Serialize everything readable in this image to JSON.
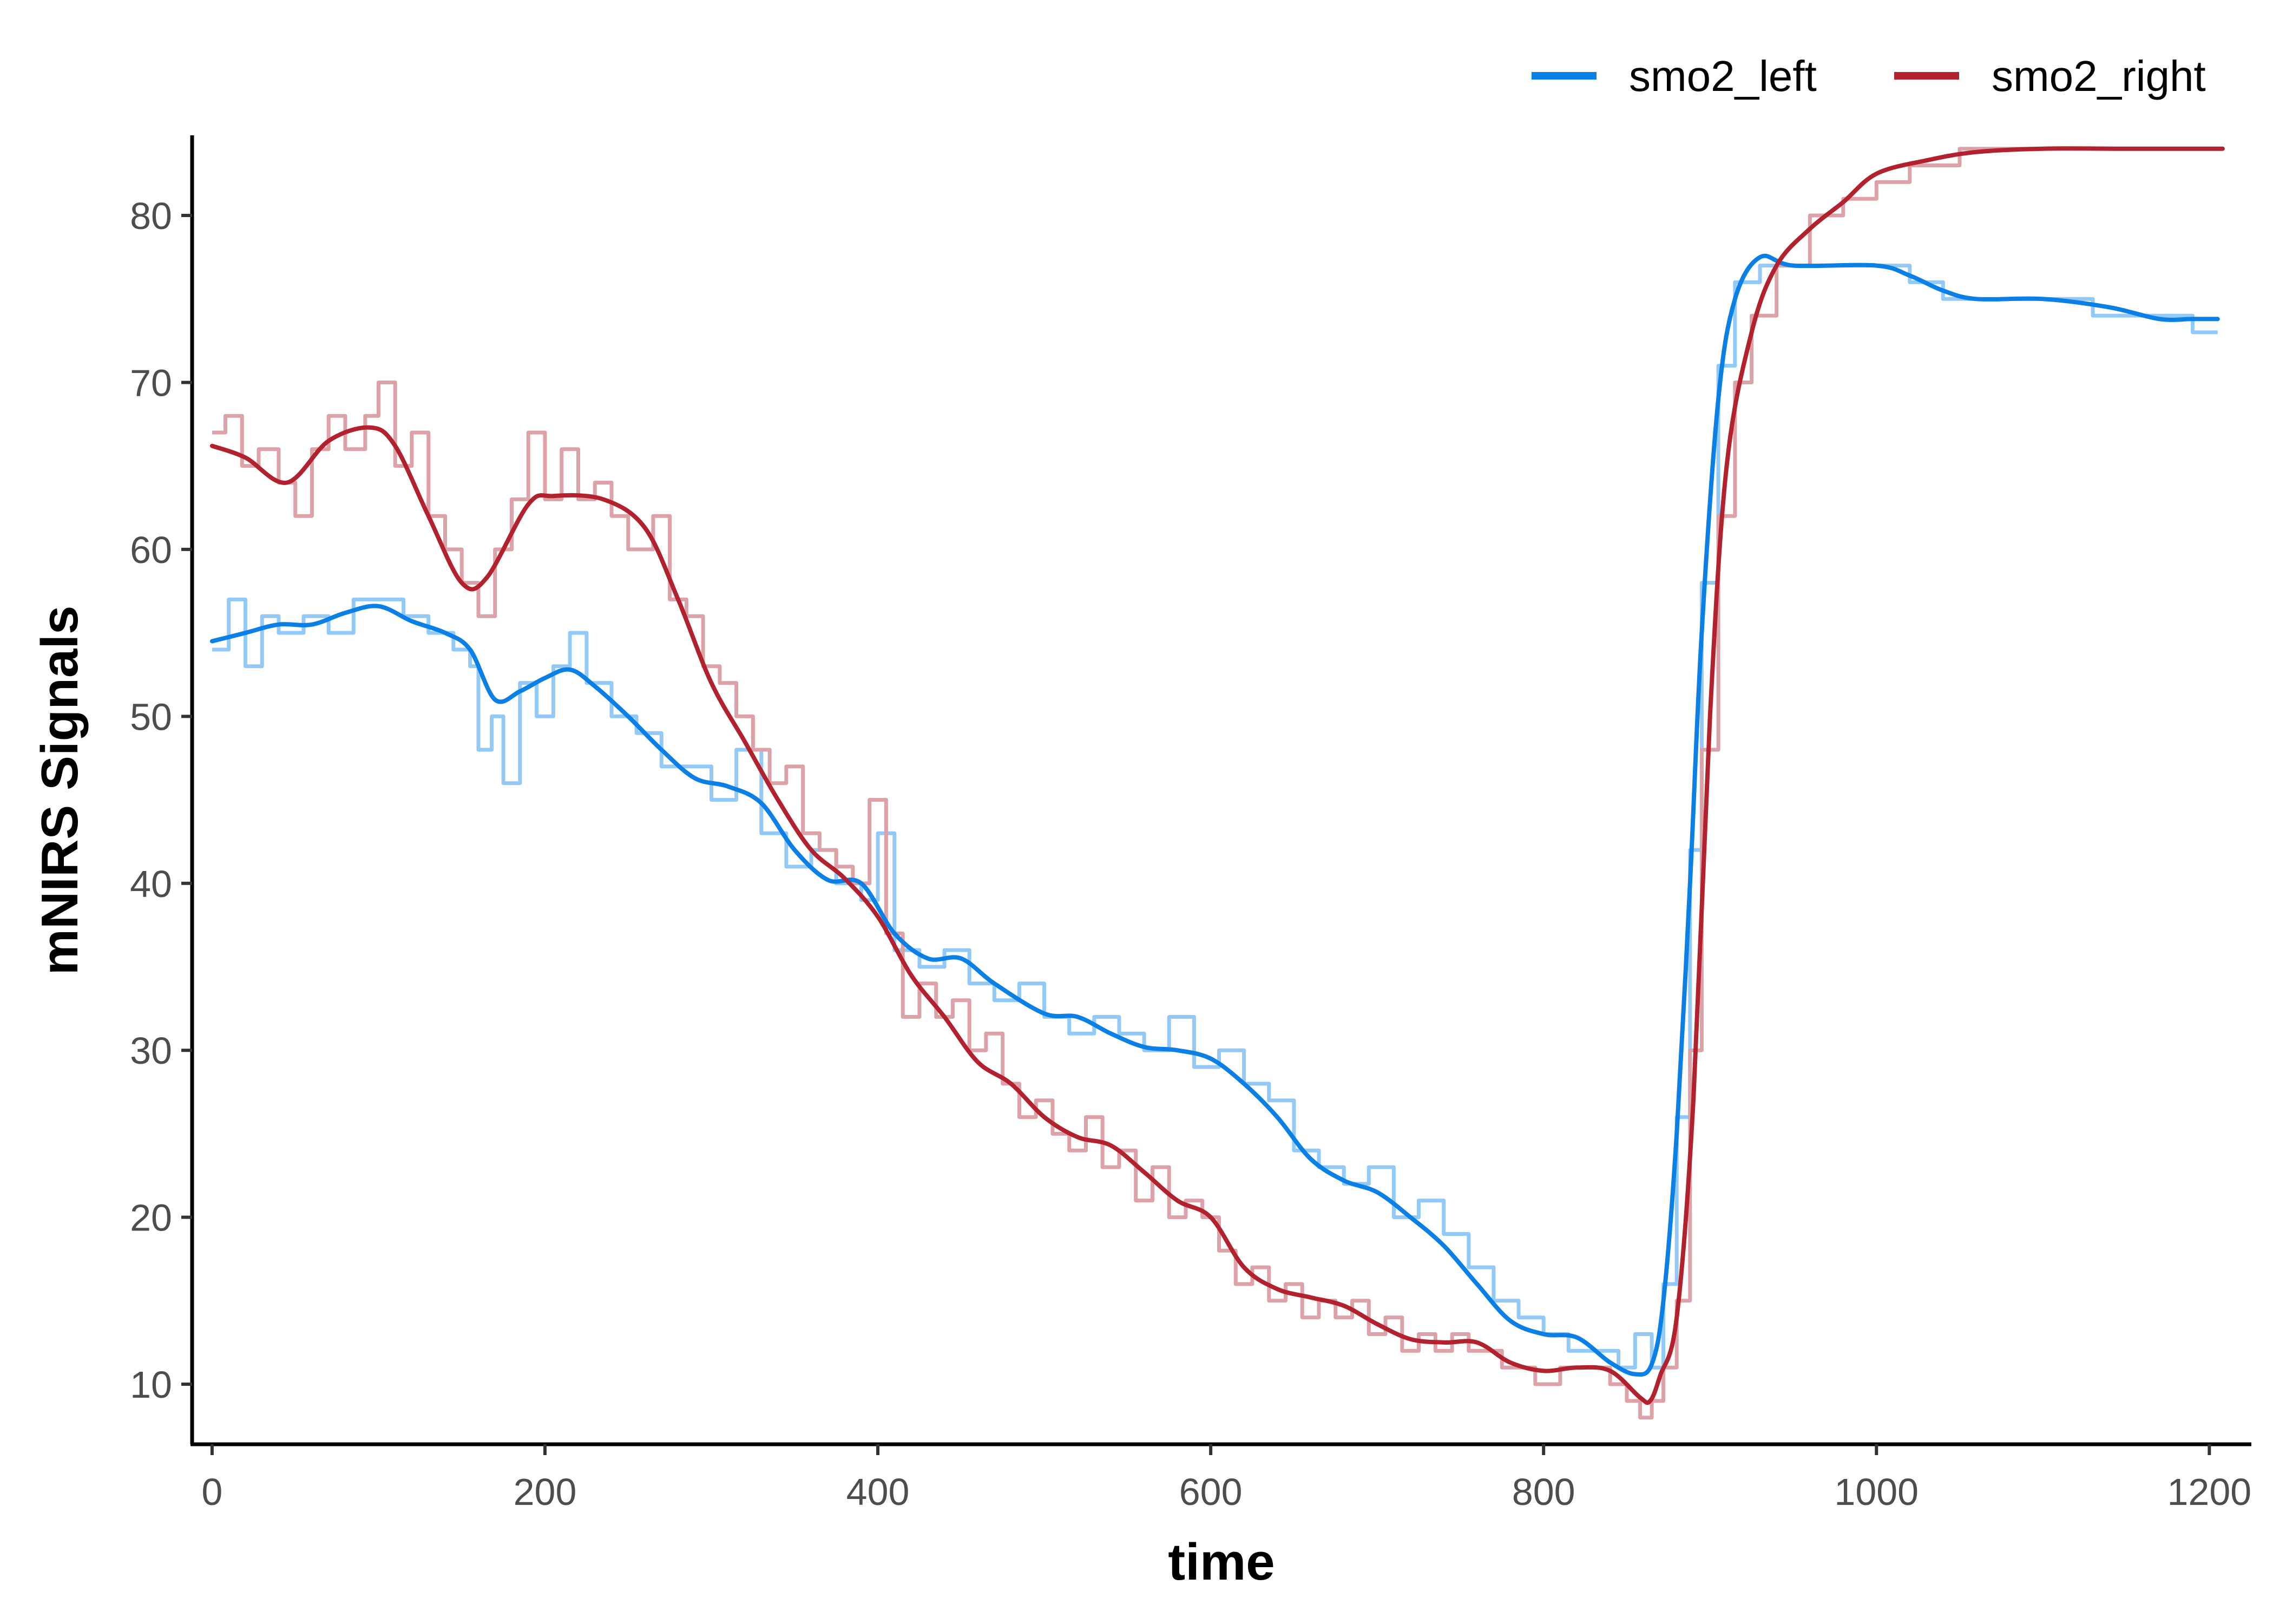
{
  "chart_data": {
    "type": "line",
    "xlabel": "time",
    "ylabel": "mNIRS Signals",
    "xlim": [
      -12,
      1222
    ],
    "ylim": [
      6.5,
      84.8
    ],
    "x_ticks": [
      0,
      200,
      400,
      600,
      800,
      1000,
      1200
    ],
    "y_ticks": [
      10,
      20,
      30,
      40,
      50,
      60,
      70,
      80
    ],
    "grid": false,
    "legend_position": "top-right",
    "series": [
      {
        "name": "smo2_left",
        "color": "#0A7FE5",
        "raw_color": "#92C9F7",
        "smooth": [
          [
            0,
            54.5
          ],
          [
            20,
            55
          ],
          [
            40,
            55.5
          ],
          [
            60,
            55.5
          ],
          [
            80,
            56.2
          ],
          [
            100,
            56.6
          ],
          [
            120,
            55.7
          ],
          [
            140,
            55
          ],
          [
            155,
            54
          ],
          [
            170,
            51
          ],
          [
            185,
            51.5
          ],
          [
            200,
            52.3
          ],
          [
            215,
            52.8
          ],
          [
            230,
            51.8
          ],
          [
            250,
            50
          ],
          [
            270,
            48
          ],
          [
            290,
            46.3
          ],
          [
            310,
            45.8
          ],
          [
            330,
            44.8
          ],
          [
            350,
            42
          ],
          [
            370,
            40.2
          ],
          [
            390,
            40
          ],
          [
            410,
            37
          ],
          [
            430,
            35.5
          ],
          [
            450,
            35.5
          ],
          [
            470,
            34
          ],
          [
            500,
            32.2
          ],
          [
            520,
            32
          ],
          [
            540,
            31
          ],
          [
            560,
            30.2
          ],
          [
            580,
            30
          ],
          [
            600,
            29.5
          ],
          [
            620,
            28
          ],
          [
            640,
            26
          ],
          [
            660,
            23.5
          ],
          [
            680,
            22.2
          ],
          [
            700,
            21.5
          ],
          [
            720,
            20
          ],
          [
            740,
            18.3
          ],
          [
            760,
            16
          ],
          [
            780,
            13.8
          ],
          [
            800,
            13
          ],
          [
            820,
            12.8
          ],
          [
            840,
            11.3
          ],
          [
            855,
            10.6
          ],
          [
            865,
            11.2
          ],
          [
            872,
            15
          ],
          [
            880,
            25
          ],
          [
            888,
            40
          ],
          [
            895,
            55
          ],
          [
            905,
            69
          ],
          [
            915,
            75
          ],
          [
            930,
            77.5
          ],
          [
            950,
            77
          ],
          [
            1000,
            77
          ],
          [
            1020,
            76.4
          ],
          [
            1040,
            75.5
          ],
          [
            1060,
            75
          ],
          [
            1100,
            75
          ],
          [
            1140,
            74.5
          ],
          [
            1170,
            73.8
          ],
          [
            1190,
            73.8
          ],
          [
            1205,
            73.8
          ]
        ],
        "raw": [
          [
            0,
            54
          ],
          [
            10,
            57
          ],
          [
            20,
            53
          ],
          [
            30,
            56
          ],
          [
            40,
            55
          ],
          [
            55,
            56
          ],
          [
            70,
            55
          ],
          [
            85,
            57
          ],
          [
            100,
            57
          ],
          [
            115,
            56
          ],
          [
            130,
            55
          ],
          [
            145,
            54
          ],
          [
            155,
            53
          ],
          [
            160,
            48
          ],
          [
            168,
            50
          ],
          [
            175,
            46
          ],
          [
            185,
            52
          ],
          [
            195,
            50
          ],
          [
            205,
            53
          ],
          [
            215,
            55
          ],
          [
            225,
            52
          ],
          [
            240,
            50
          ],
          [
            255,
            49
          ],
          [
            270,
            47
          ],
          [
            285,
            47
          ],
          [
            300,
            45
          ],
          [
            315,
            48
          ],
          [
            330,
            43
          ],
          [
            345,
            41
          ],
          [
            360,
            42
          ],
          [
            375,
            40
          ],
          [
            390,
            39
          ],
          [
            400,
            43
          ],
          [
            410,
            36
          ],
          [
            425,
            35
          ],
          [
            440,
            36
          ],
          [
            455,
            34
          ],
          [
            470,
            33
          ],
          [
            485,
            34
          ],
          [
            500,
            32
          ],
          [
            515,
            31
          ],
          [
            530,
            32
          ],
          [
            545,
            31
          ],
          [
            560,
            30
          ],
          [
            575,
            32
          ],
          [
            590,
            29
          ],
          [
            605,
            30
          ],
          [
            620,
            28
          ],
          [
            635,
            27
          ],
          [
            650,
            24
          ],
          [
            665,
            23
          ],
          [
            680,
            22
          ],
          [
            695,
            23
          ],
          [
            710,
            20
          ],
          [
            725,
            21
          ],
          [
            740,
            19
          ],
          [
            755,
            17
          ],
          [
            770,
            15
          ],
          [
            785,
            14
          ],
          [
            800,
            13
          ],
          [
            815,
            12
          ],
          [
            830,
            12
          ],
          [
            845,
            11
          ],
          [
            855,
            13
          ],
          [
            865,
            11
          ],
          [
            872,
            16
          ],
          [
            880,
            26
          ],
          [
            888,
            42
          ],
          [
            895,
            58
          ],
          [
            905,
            71
          ],
          [
            915,
            76
          ],
          [
            930,
            77
          ],
          [
            950,
            77
          ],
          [
            980,
            77
          ],
          [
            1000,
            77
          ],
          [
            1020,
            76
          ],
          [
            1040,
            75
          ],
          [
            1070,
            75
          ],
          [
            1100,
            75
          ],
          [
            1130,
            74
          ],
          [
            1160,
            74
          ],
          [
            1190,
            73
          ],
          [
            1205,
            73
          ]
        ]
      },
      {
        "name": "smo2_right",
        "color": "#B2222E",
        "raw_color": "#DCA2A7",
        "smooth": [
          [
            0,
            66.2
          ],
          [
            20,
            65.5
          ],
          [
            45,
            64
          ],
          [
            70,
            66.5
          ],
          [
            95,
            67.3
          ],
          [
            110,
            66.2
          ],
          [
            130,
            62
          ],
          [
            150,
            58
          ],
          [
            165,
            58.3
          ],
          [
            190,
            62.7
          ],
          [
            205,
            63.2
          ],
          [
            235,
            63
          ],
          [
            260,
            61.3
          ],
          [
            280,
            57
          ],
          [
            300,
            52
          ],
          [
            320,
            48.5
          ],
          [
            340,
            45
          ],
          [
            360,
            42
          ],
          [
            380,
            40.3
          ],
          [
            400,
            38
          ],
          [
            420,
            34.5
          ],
          [
            440,
            32
          ],
          [
            460,
            29.3
          ],
          [
            480,
            28
          ],
          [
            500,
            26
          ],
          [
            520,
            24.8
          ],
          [
            540,
            24.3
          ],
          [
            560,
            22.7
          ],
          [
            580,
            21
          ],
          [
            600,
            20
          ],
          [
            620,
            17
          ],
          [
            640,
            15.7
          ],
          [
            660,
            15.2
          ],
          [
            680,
            14.7
          ],
          [
            700,
            13.6
          ],
          [
            720,
            12.7
          ],
          [
            740,
            12.5
          ],
          [
            760,
            12.5
          ],
          [
            780,
            11.3
          ],
          [
            800,
            10.8
          ],
          [
            820,
            11
          ],
          [
            840,
            10.8
          ],
          [
            858,
            9.2
          ],
          [
            864,
            9
          ],
          [
            870,
            10.5
          ],
          [
            880,
            14
          ],
          [
            890,
            27
          ],
          [
            900,
            50
          ],
          [
            910,
            65
          ],
          [
            925,
            73
          ],
          [
            940,
            77
          ],
          [
            960,
            79.2
          ],
          [
            980,
            80.8
          ],
          [
            1000,
            82.5
          ],
          [
            1030,
            83.3
          ],
          [
            1060,
            83.8
          ],
          [
            1100,
            84
          ],
          [
            1150,
            84
          ],
          [
            1208,
            84
          ]
        ],
        "raw": [
          [
            0,
            67
          ],
          [
            8,
            68
          ],
          [
            18,
            65
          ],
          [
            28,
            66
          ],
          [
            40,
            64
          ],
          [
            50,
            62
          ],
          [
            60,
            66
          ],
          [
            70,
            68
          ],
          [
            80,
            66
          ],
          [
            92,
            68
          ],
          [
            100,
            70
          ],
          [
            110,
            65
          ],
          [
            120,
            67
          ],
          [
            130,
            62
          ],
          [
            140,
            60
          ],
          [
            150,
            58
          ],
          [
            160,
            56
          ],
          [
            170,
            60
          ],
          [
            180,
            63
          ],
          [
            190,
            67
          ],
          [
            200,
            63
          ],
          [
            210,
            66
          ],
          [
            220,
            63
          ],
          [
            230,
            64
          ],
          [
            240,
            62
          ],
          [
            250,
            60
          ],
          [
            265,
            62
          ],
          [
            275,
            57
          ],
          [
            285,
            56
          ],
          [
            295,
            53
          ],
          [
            305,
            52
          ],
          [
            315,
            50
          ],
          [
            325,
            48
          ],
          [
            335,
            46
          ],
          [
            345,
            47
          ],
          [
            355,
            43
          ],
          [
            365,
            42
          ],
          [
            375,
            41
          ],
          [
            385,
            40
          ],
          [
            395,
            45
          ],
          [
            405,
            37
          ],
          [
            415,
            32
          ],
          [
            425,
            34
          ],
          [
            435,
            32
          ],
          [
            445,
            33
          ],
          [
            455,
            30
          ],
          [
            465,
            31
          ],
          [
            475,
            28
          ],
          [
            485,
            26
          ],
          [
            495,
            27
          ],
          [
            505,
            25
          ],
          [
            515,
            24
          ],
          [
            525,
            26
          ],
          [
            535,
            23
          ],
          [
            545,
            24
          ],
          [
            555,
            21
          ],
          [
            565,
            23
          ],
          [
            575,
            20
          ],
          [
            585,
            21
          ],
          [
            595,
            20
          ],
          [
            605,
            18
          ],
          [
            615,
            16
          ],
          [
            625,
            17
          ],
          [
            635,
            15
          ],
          [
            645,
            16
          ],
          [
            655,
            14
          ],
          [
            665,
            15
          ],
          [
            675,
            14
          ],
          [
            685,
            15
          ],
          [
            695,
            13
          ],
          [
            705,
            14
          ],
          [
            715,
            12
          ],
          [
            725,
            13
          ],
          [
            735,
            12
          ],
          [
            745,
            13
          ],
          [
            755,
            12
          ],
          [
            765,
            12
          ],
          [
            775,
            11
          ],
          [
            785,
            11
          ],
          [
            795,
            10
          ],
          [
            810,
            11
          ],
          [
            825,
            11
          ],
          [
            840,
            10
          ],
          [
            850,
            9
          ],
          [
            858,
            8
          ],
          [
            865,
            9
          ],
          [
            872,
            11
          ],
          [
            880,
            15
          ],
          [
            888,
            30
          ],
          [
            895,
            48
          ],
          [
            905,
            62
          ],
          [
            915,
            70
          ],
          [
            925,
            74
          ],
          [
            940,
            77
          ],
          [
            960,
            80
          ],
          [
            980,
            81
          ],
          [
            1000,
            82
          ],
          [
            1020,
            83
          ],
          [
            1050,
            84
          ],
          [
            1080,
            84
          ],
          [
            1120,
            84
          ],
          [
            1170,
            84
          ],
          [
            1208,
            84
          ]
        ]
      }
    ]
  }
}
